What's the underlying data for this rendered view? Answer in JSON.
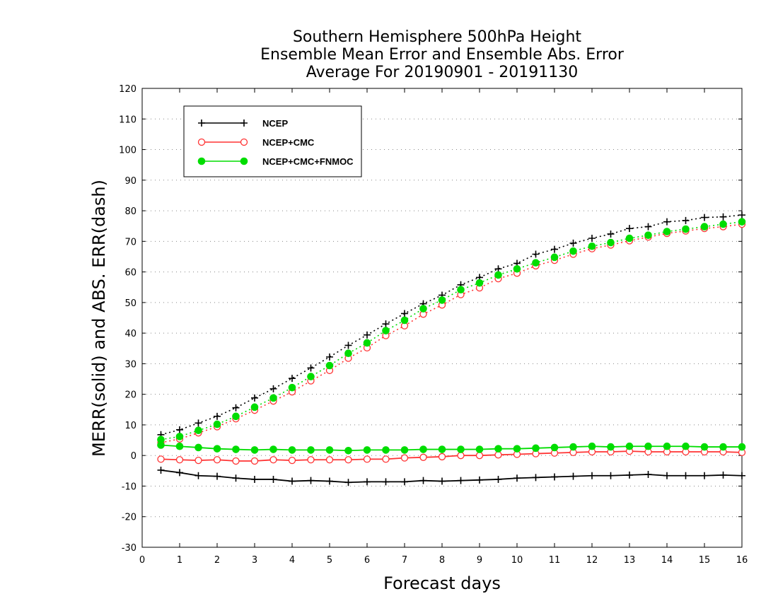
{
  "chart_data": {
    "type": "line",
    "title": [
      "Southern Hemisphere 500hPa Height",
      "Ensemble Mean Error and Ensemble Abs. Error",
      "Average For 20190901 - 20191130"
    ],
    "xlabel": "Forecast days",
    "ylabel": "MERR(solid) and ABS. ERR(dash)",
    "xlim": [
      0,
      16
    ],
    "ylim": [
      -30,
      120
    ],
    "x_ticks": [
      0,
      1,
      2,
      3,
      4,
      5,
      6,
      7,
      8,
      9,
      10,
      11,
      12,
      13,
      14,
      15,
      16
    ],
    "y_ticks": [
      -30,
      -20,
      -10,
      0,
      10,
      20,
      30,
      40,
      50,
      60,
      70,
      80,
      90,
      100,
      110,
      120
    ],
    "grid": "horizontal dotted",
    "legend_position": "top-left",
    "x": [
      0.5,
      1,
      1.5,
      2,
      2.5,
      3,
      3.5,
      4,
      4.5,
      5,
      5.5,
      6,
      6.5,
      7,
      7.5,
      8,
      8.5,
      9,
      9.5,
      10,
      10.5,
      11,
      11.5,
      12,
      12.5,
      13,
      13.5,
      14,
      14.5,
      15,
      15.5,
      16
    ],
    "series": [
      {
        "name": "NCEP",
        "color": "#000000",
        "marker": "plus",
        "merr": [
          -4.8,
          -5.6,
          -6.6,
          -6.8,
          -7.4,
          -7.8,
          -7.8,
          -8.4,
          -8.2,
          -8.4,
          -8.8,
          -8.6,
          -8.6,
          -8.6,
          -8.2,
          -8.4,
          -8.2,
          -8.0,
          -7.8,
          -7.4,
          -7.2,
          -7.0,
          -6.8,
          -6.6,
          -6.6,
          -6.4,
          -6.2,
          -6.6,
          -6.6,
          -6.6,
          -6.4,
          -6.6
        ],
        "abs_err": [
          6.8,
          8.4,
          10.6,
          12.8,
          15.6,
          18.8,
          21.8,
          25.2,
          28.6,
          32.2,
          36.0,
          39.4,
          43.0,
          46.4,
          49.6,
          52.4,
          55.8,
          58.2,
          61.0,
          62.8,
          65.8,
          67.4,
          69.4,
          71.0,
          72.4,
          74.2,
          74.8,
          76.4,
          76.8,
          77.8,
          78.0,
          78.6
        ]
      },
      {
        "name": "NCEP+CMC",
        "color": "#ff3333",
        "marker": "open-circle",
        "merr": [
          -1.2,
          -1.4,
          -1.6,
          -1.4,
          -1.8,
          -1.8,
          -1.4,
          -1.6,
          -1.4,
          -1.4,
          -1.4,
          -1.2,
          -1.2,
          -0.8,
          -0.6,
          -0.4,
          0.0,
          0.0,
          0.2,
          0.4,
          0.6,
          0.8,
          1.0,
          1.2,
          1.2,
          1.4,
          1.2,
          1.2,
          1.2,
          1.2,
          1.2,
          1.0
        ],
        "abs_err": [
          4.2,
          5.4,
          7.4,
          9.4,
          12.0,
          14.8,
          17.8,
          20.8,
          24.4,
          27.8,
          31.8,
          35.2,
          39.2,
          42.4,
          46.2,
          49.2,
          52.6,
          54.8,
          57.8,
          59.6,
          62.0,
          63.8,
          65.8,
          67.6,
          68.8,
          70.2,
          71.4,
          72.6,
          73.4,
          74.2,
          74.8,
          75.6
        ]
      },
      {
        "name": "NCEP+CMC+FNMOC",
        "color": "#00dd00",
        "marker": "filled-circle",
        "merr": [
          3.4,
          3.0,
          2.6,
          2.2,
          2.0,
          1.8,
          2.0,
          1.8,
          1.8,
          1.8,
          1.6,
          1.8,
          1.8,
          1.8,
          2.0,
          2.0,
          2.0,
          2.0,
          2.2,
          2.2,
          2.4,
          2.6,
          2.8,
          3.0,
          2.8,
          3.0,
          3.0,
          3.0,
          3.0,
          2.8,
          2.8,
          2.8
        ],
        "abs_err": [
          5.2,
          6.2,
          8.2,
          10.2,
          12.8,
          15.8,
          18.8,
          22.2,
          25.8,
          29.4,
          33.4,
          36.8,
          40.8,
          44.2,
          48.0,
          50.8,
          54.2,
          56.4,
          59.0,
          61.0,
          63.0,
          64.8,
          66.8,
          68.4,
          69.6,
          71.0,
          72.0,
          73.2,
          74.0,
          74.8,
          75.6,
          76.4
        ]
      }
    ]
  }
}
